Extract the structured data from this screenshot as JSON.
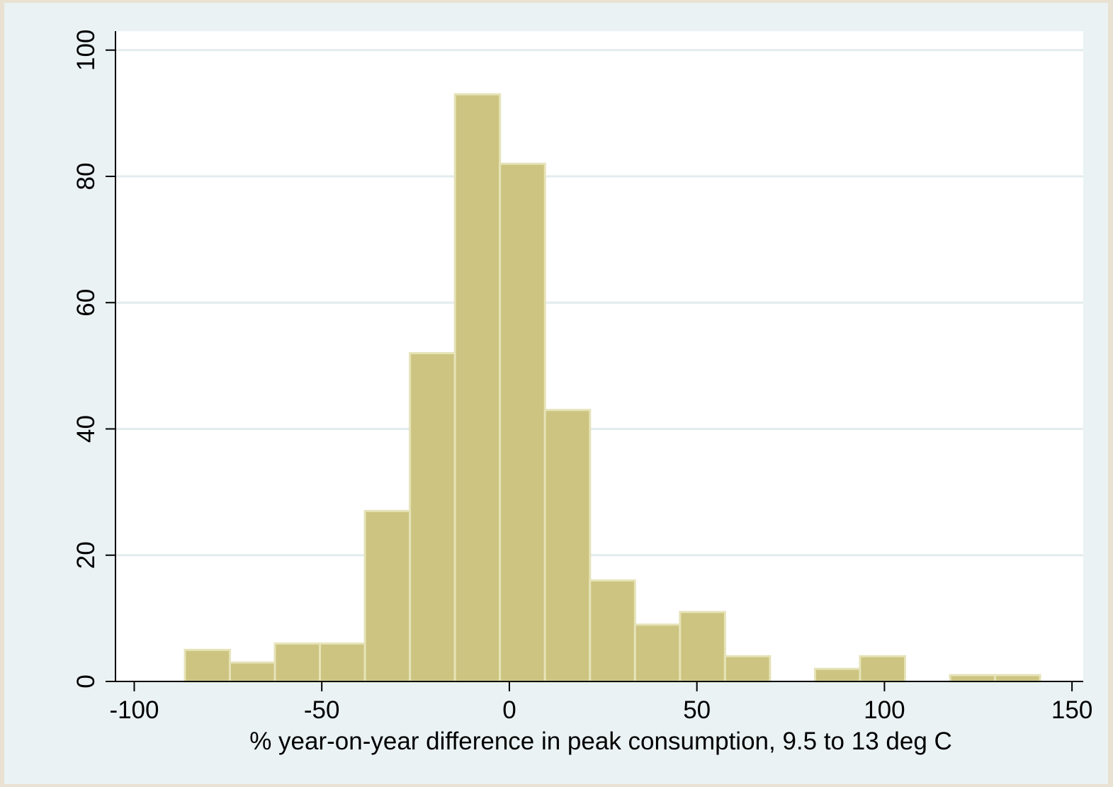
{
  "chart_data": {
    "type": "bar",
    "subtype": "histogram",
    "xlabel": "% year-on-year difference in peak consumption, 9.5 to 13 deg C",
    "ylabel": "",
    "xlim": [
      -105,
      153
    ],
    "ylim": [
      0,
      103
    ],
    "grid": true,
    "xticks": [
      -100,
      -50,
      0,
      50,
      100,
      150
    ],
    "yticks": [
      0,
      20,
      40,
      60,
      80,
      100
    ],
    "xtick_labels": [
      "-100",
      "-50",
      "0",
      "50",
      "100",
      "150"
    ],
    "ytick_labels": [
      "0",
      "20",
      "40",
      "60",
      "80",
      "100"
    ],
    "bins": [
      {
        "x0": -86.5,
        "x1": -74.5,
        "value": 5
      },
      {
        "x0": -74.5,
        "x1": -62.5,
        "value": 3
      },
      {
        "x0": -62.5,
        "x1": -50.5,
        "value": 6
      },
      {
        "x0": -50.5,
        "x1": -38.5,
        "value": 6
      },
      {
        "x0": -38.5,
        "x1": -26.5,
        "value": 27
      },
      {
        "x0": -26.5,
        "x1": -14.5,
        "value": 52
      },
      {
        "x0": -14.5,
        "x1": -2.5,
        "value": 93
      },
      {
        "x0": -2.5,
        "x1": 9.5,
        "value": 82
      },
      {
        "x0": 9.5,
        "x1": 21.5,
        "value": 43
      },
      {
        "x0": 21.5,
        "x1": 33.5,
        "value": 16
      },
      {
        "x0": 33.5,
        "x1": 45.5,
        "value": 9
      },
      {
        "x0": 45.5,
        "x1": 57.5,
        "value": 11
      },
      {
        "x0": 57.5,
        "x1": 69.5,
        "value": 4
      },
      {
        "x0": 69.5,
        "x1": 81.5,
        "value": 0
      },
      {
        "x0": 81.5,
        "x1": 93.5,
        "value": 2
      },
      {
        "x0": 93.5,
        "x1": 105.5,
        "value": 4
      },
      {
        "x0": 105.5,
        "x1": 117.5,
        "value": 0
      },
      {
        "x0": 117.5,
        "x1": 129.5,
        "value": 1
      },
      {
        "x0": 129.5,
        "x1": 141.5,
        "value": 1
      }
    ],
    "colors": {
      "bar_fill": "#ccc480",
      "bar_edge": "#e6e3b8",
      "plot_bg": "#ffffff",
      "frame_bg": "#eaf2f3",
      "page_bg": "#e9e1d2",
      "grid": "#e3ecee"
    }
  }
}
